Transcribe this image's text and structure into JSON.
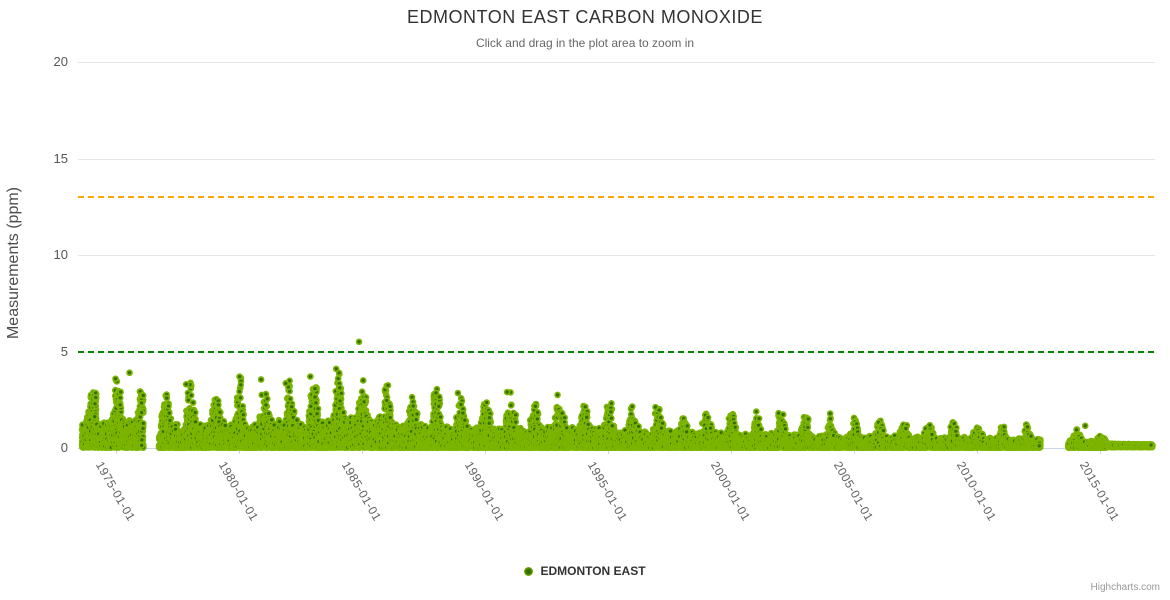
{
  "header": {
    "title": "EDMONTON EAST CARBON MONOXIDE",
    "subtitle": "Click and drag in the plot area to zoom in"
  },
  "legend": {
    "series_label": "EDMONTON EAST"
  },
  "credits": {
    "label": "Highcharts.com"
  },
  "colors": {
    "series_fill": "#7cb400",
    "series_core": "#336f00",
    "guideline_green": "#068006",
    "guideline_orange": "#f5a800",
    "gridline": "#e6e6e6",
    "axis_line": "#ccd6eb",
    "title_text": "#333333",
    "subtitle_text": "#666666",
    "tick_text": "#555555"
  },
  "chart_data": {
    "type": "scatter",
    "title": "EDMONTON EAST CARBON MONOXIDE",
    "subtitle": "Click and drag in the plot area to zoom in",
    "xlabel": "",
    "ylabel": "Measurements (ppm)",
    "ylim": [
      0,
      20
    ],
    "xlim_years": [
      1973.45,
      2017.2
    ],
    "grid": true,
    "legend_position": "bottom-center",
    "yticks": [
      {
        "value": 0,
        "label": "0"
      },
      {
        "value": 5,
        "label": "5"
      },
      {
        "value": 10,
        "label": "10"
      },
      {
        "value": 15,
        "label": "15"
      },
      {
        "value": 20,
        "label": "20"
      }
    ],
    "xticks": [
      {
        "year": 1975,
        "label": "1975-01-01"
      },
      {
        "year": 1980,
        "label": "1980-01-01"
      },
      {
        "year": 1985,
        "label": "1985-01-01"
      },
      {
        "year": 1990,
        "label": "1990-01-01"
      },
      {
        "year": 1995,
        "label": "1995-01-01"
      },
      {
        "year": 2000,
        "label": "2000-01-01"
      },
      {
        "year": 2005,
        "label": "2005-01-01"
      },
      {
        "year": 2010,
        "label": "2010-01-01"
      },
      {
        "year": 2015,
        "label": "2015-01-01"
      }
    ],
    "plot_lines": [
      {
        "value": 13,
        "color": "#f5a800",
        "dash": [
          6,
          4
        ],
        "width": 2
      },
      {
        "value": 5,
        "color": "#068006",
        "dash": [
          6,
          4
        ],
        "width": 2
      }
    ],
    "series": [
      {
        "name": "EDMONTON EAST",
        "color": "#7cb400",
        "marker": "circle",
        "marker_radius": 3.3,
        "seed": 1234567,
        "segments": [
          {
            "from": 1973.62,
            "to": 1976.1,
            "points_per_month": 38,
            "peak_start": 3.1,
            "peak_end": 3.3,
            "spread": 1.5
          },
          {
            "from": 1976.75,
            "to": 1986.0,
            "points_per_month": 38,
            "peak_start": 2.7,
            "peak_end": 3.6,
            "spread": 1.9
          },
          {
            "from": 1986.0,
            "to": 1996.0,
            "points_per_month": 34,
            "peak_start": 2.9,
            "peak_end": 2.2,
            "spread": 2.1
          },
          {
            "from": 1996.0,
            "to": 2003.0,
            "points_per_month": 30,
            "peak_start": 2.1,
            "peak_end": 1.6,
            "spread": 2.1
          },
          {
            "from": 2003.0,
            "to": 2009.0,
            "points_per_month": 26,
            "peak_start": 1.55,
            "peak_end": 1.25,
            "spread": 2.1
          },
          {
            "from": 2009.0,
            "to": 2012.6,
            "points_per_month": 24,
            "peak_start": 1.25,
            "peak_end": 1.0,
            "spread": 2.1
          },
          {
            "from": 2013.7,
            "to": 2015.3,
            "points_per_month": 20,
            "peak_start": 0.95,
            "peak_end": 0.7,
            "spread": 2.1
          },
          {
            "from": 2015.3,
            "to": 2017.1,
            "points_per_month": 26,
            "peak_start": 0.18,
            "peak_end": 0.15,
            "flat": true
          }
        ],
        "notable_points": [
          {
            "x": 1975.55,
            "y": 3.9
          },
          {
            "x": 1977.85,
            "y": 3.3
          },
          {
            "x": 1980.9,
            "y": 3.55
          },
          {
            "x": 1981.9,
            "y": 3.35
          },
          {
            "x": 1982.9,
            "y": 3.7
          },
          {
            "x": 1983.95,
            "y": 4.1
          },
          {
            "x": 1984.88,
            "y": 5.5
          },
          {
            "x": 1985.05,
            "y": 3.5
          },
          {
            "x": 1988.9,
            "y": 2.85
          },
          {
            "x": 1990.9,
            "y": 2.9
          },
          {
            "x": 1992.95,
            "y": 2.75
          },
          {
            "x": 2014.4,
            "y": 1.15
          }
        ]
      }
    ]
  }
}
